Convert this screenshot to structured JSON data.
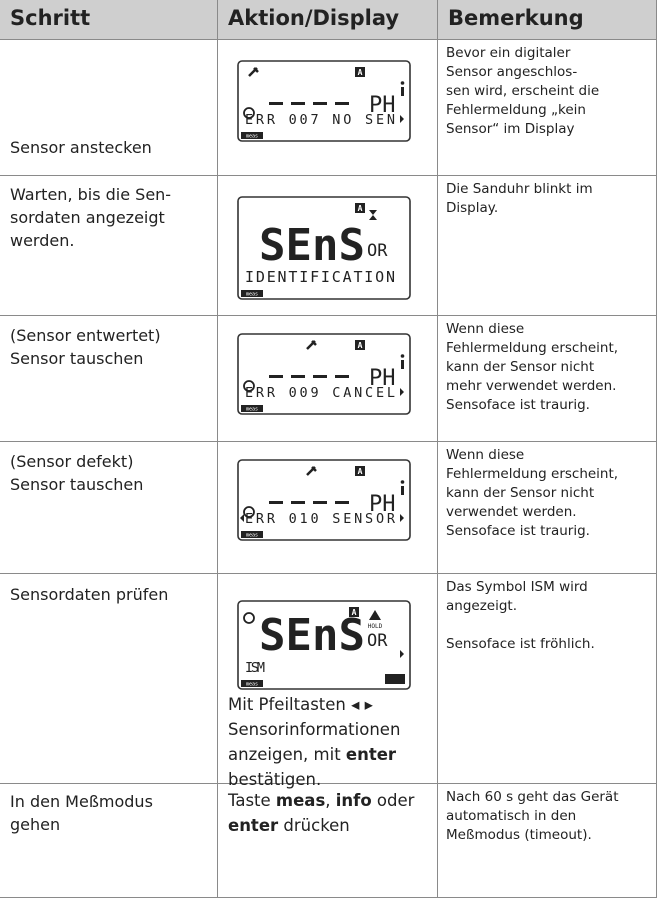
{
  "header": {
    "columns": [
      "Schritt",
      "Aktion/Display",
      "Bemerkung"
    ]
  },
  "rows": [
    {
      "step": [
        "Sensor anstecken"
      ],
      "display": {
        "a": "A",
        "top": "PH",
        "bottom": "ERR 007 NO SEN",
        "meas": "meas"
      },
      "remark": [
        "Bevor ein digitaler",
        "Sensor angeschlos-",
        "sen wird, erscheint die",
        "Fehlermeldung „kein",
        "Sensor“ im Display"
      ]
    },
    {
      "step": [
        "Warten, bis die Sen-",
        "sordaten angezeigt",
        "werden."
      ],
      "display": {
        "a": "A",
        "big": "SEnS",
        "small": "OR",
        "bottom": "IDENTIFICATION",
        "meas": "meas"
      },
      "remark": [
        "Die Sanduhr blinkt im",
        "Display."
      ]
    },
    {
      "step": [
        "(Sensor entwertet)",
        "Sensor tauschen"
      ],
      "display": {
        "a": "A",
        "top": "PH",
        "bottom": "ERR 009 CANCEL",
        "meas": "meas"
      },
      "remark": [
        "Wenn diese",
        "Fehlermeldung erscheint,",
        "kann der Sensor nicht",
        "mehr verwendet werden.",
        "Sensoface ist traurig."
      ]
    },
    {
      "step": [
        "(Sensor defekt)",
        "Sensor tauschen"
      ],
      "display": {
        "a": "A",
        "top": "PH",
        "bottom": "ERR 010 SENSOR",
        "meas": "meas"
      },
      "remark": [
        "Wenn diese",
        "Fehlermeldung erscheint,",
        "kann der Sensor nicht",
        "verwendet werden.",
        "Sensoface ist traurig."
      ]
    },
    {
      "step": [
        "Sensordaten prüfen"
      ],
      "display": {
        "a": "A",
        "hold": "HOLD",
        "big": "SEnS",
        "small": "OR",
        "bottom": "ISM",
        "meas": "meas"
      },
      "action": [
        [
          {
            "text": "Mit Pfeiltasten ◂ ▸"
          }
        ],
        [
          {
            "text": "Sensorinformationen"
          }
        ],
        [
          {
            "text": "anzeigen, mit "
          },
          {
            "text": "enter",
            "bold": true
          }
        ],
        [
          {
            "text": "bestätigen."
          }
        ]
      ],
      "remark": [
        "Das Symbol ISM wird",
        "angezeigt.",
        "",
        "Sensoface ist fröhlich."
      ]
    },
    {
      "step": [
        "In den Meßmodus",
        "gehen"
      ],
      "action": [
        [
          {
            "text": "Taste "
          },
          {
            "text": "meas",
            "bold": true
          },
          {
            "text": ", "
          },
          {
            "text": "info",
            "bold": true
          },
          {
            "text": " oder"
          }
        ],
        [
          {
            "text": "enter",
            "bold": true
          },
          {
            "text": " drücken"
          }
        ]
      ],
      "remark": [
        "Nach 60 s geht das Gerät",
        "automatisch in den",
        "Meßmodus (timeout)."
      ]
    }
  ]
}
